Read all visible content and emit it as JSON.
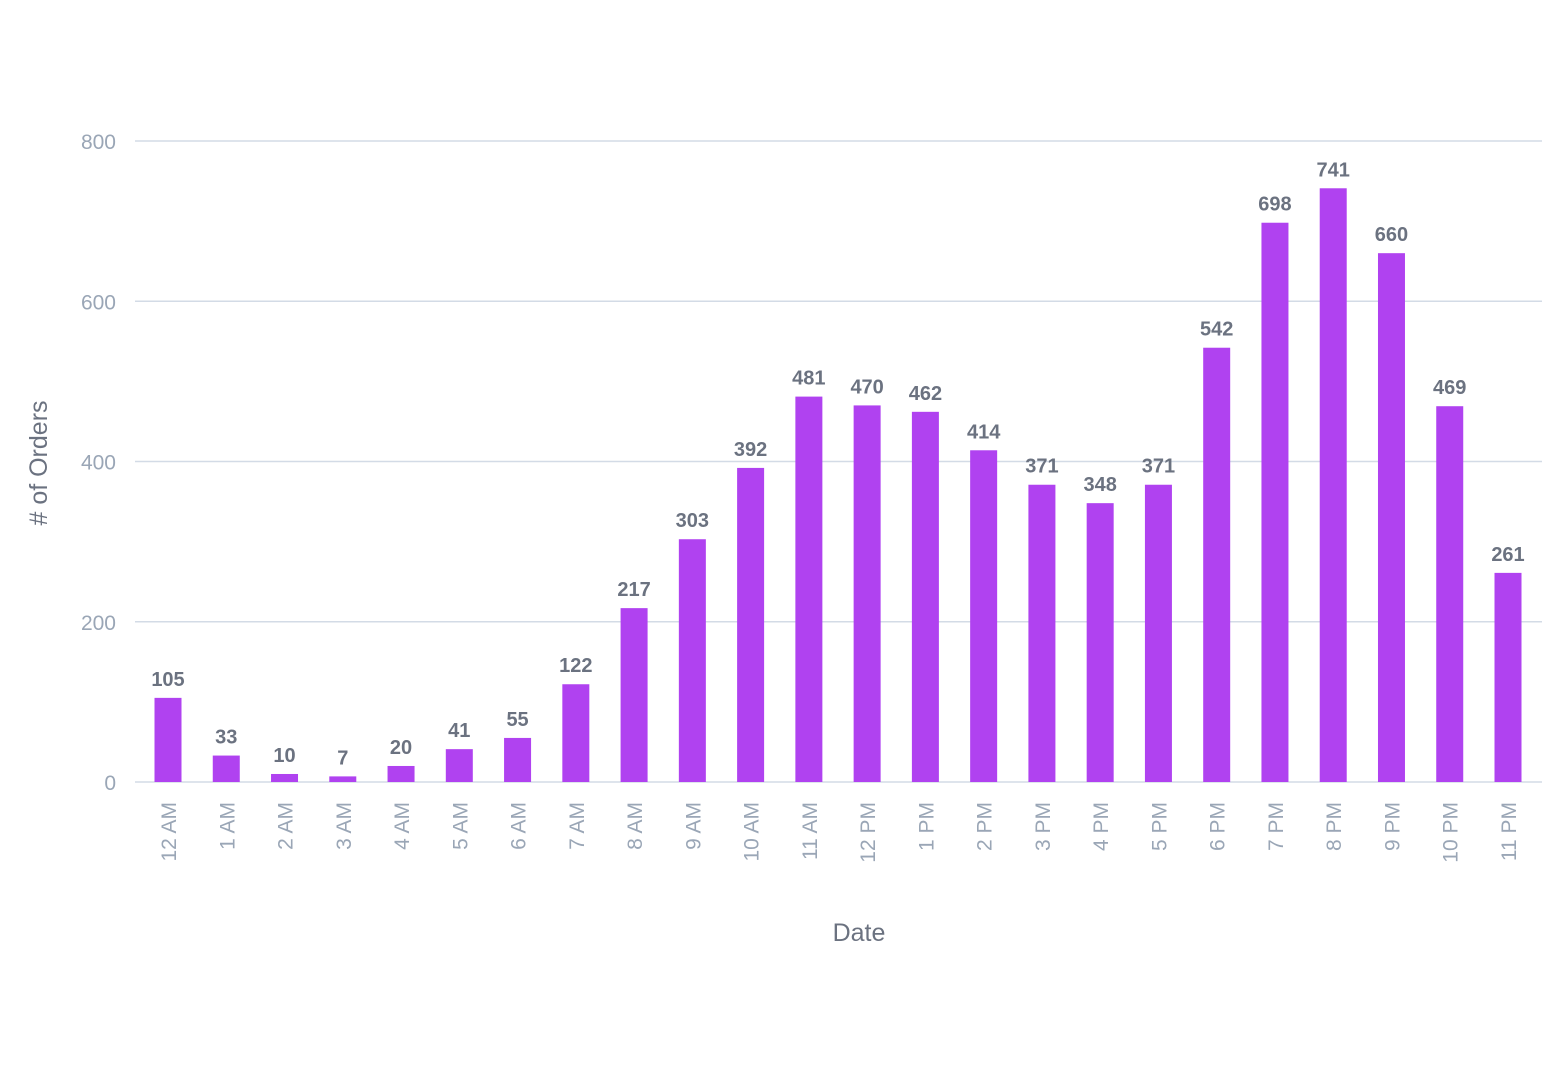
{
  "chart_data": {
    "type": "bar",
    "title": "",
    "xlabel": "Date",
    "ylabel": "# of Orders",
    "ylim": [
      0,
      800
    ],
    "yticks": [
      0,
      200,
      400,
      600,
      800
    ],
    "grid": true,
    "categories": [
      "12 AM",
      "1 AM",
      "2 AM",
      "3 AM",
      "4 AM",
      "5 AM",
      "6 AM",
      "7 AM",
      "8 AM",
      "9 AM",
      "10 AM",
      "11 AM",
      "12 PM",
      "1 PM",
      "2 PM",
      "3 PM",
      "4 PM",
      "5 PM",
      "6 PM",
      "7 PM",
      "8 PM",
      "9 PM",
      "10 PM",
      "11 PM"
    ],
    "values": [
      105,
      33,
      10,
      7,
      20,
      41,
      55,
      122,
      217,
      303,
      392,
      481,
      470,
      462,
      414,
      371,
      348,
      371,
      542,
      698,
      741,
      660,
      469,
      261
    ],
    "bar_color": "#b042f0"
  }
}
